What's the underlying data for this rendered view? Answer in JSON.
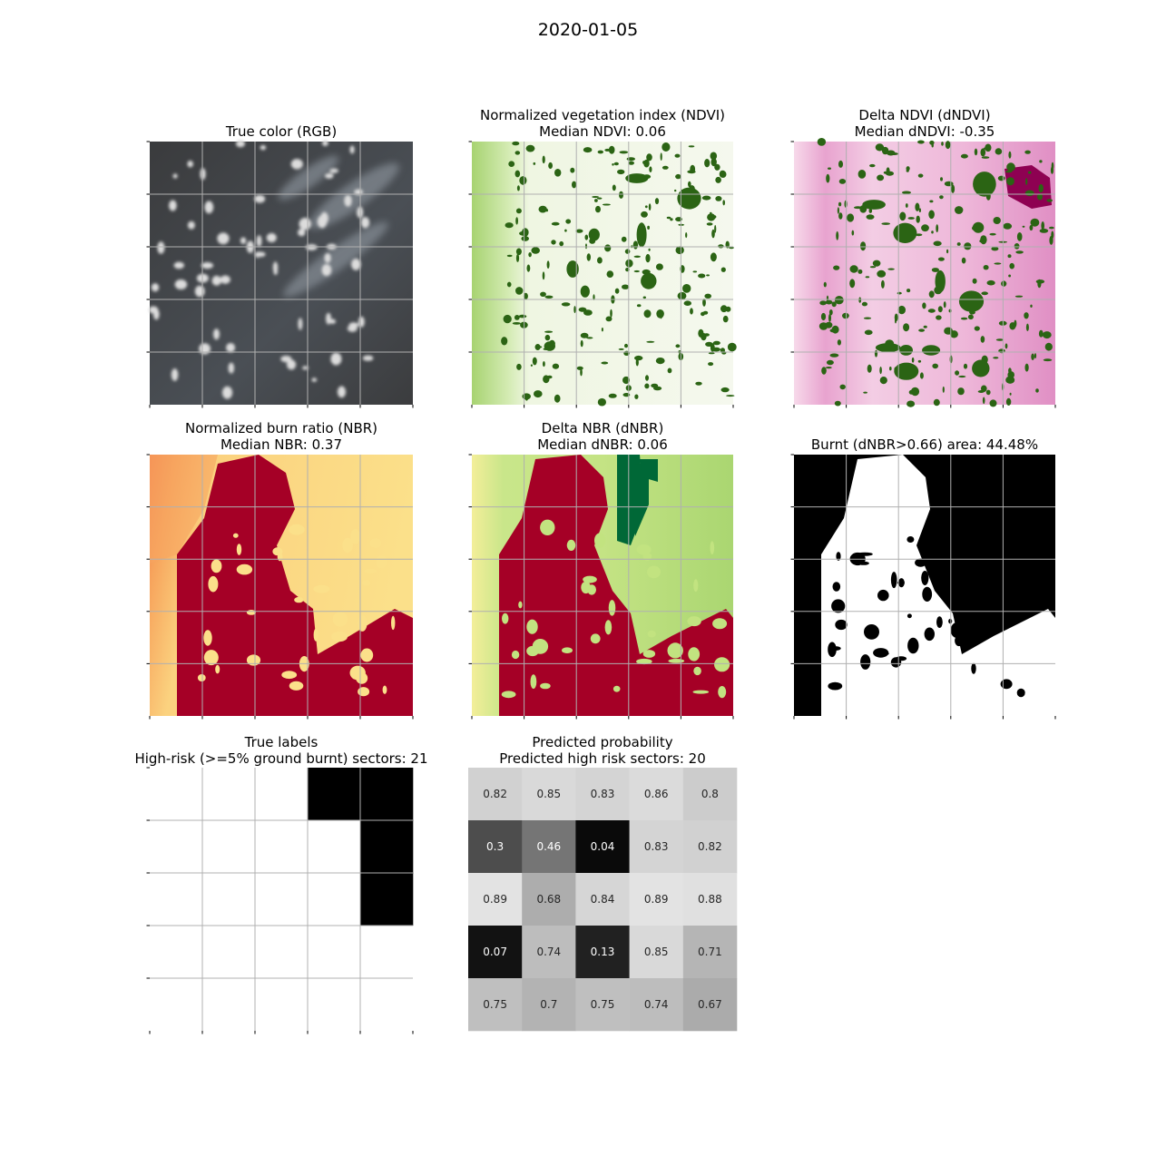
{
  "figure": {
    "suptitle": "2020-01-05",
    "panels": [
      {
        "id": "rgb",
        "title": "True color (RGB)",
        "subtitle": ""
      },
      {
        "id": "ndvi",
        "title": "Normalized vegetation index (NDVI)",
        "subtitle": "Median NDVI: 0.06"
      },
      {
        "id": "dndvi",
        "title": "Delta NDVI (dNDVI)",
        "subtitle": "Median dNDVI: -0.35"
      },
      {
        "id": "nbr",
        "title": "Normalized burn ratio (NBR)",
        "subtitle": "Median NBR: 0.37"
      },
      {
        "id": "dnbr",
        "title": "Delta NBR (dNBR)",
        "subtitle": "Median dNBR: 0.06"
      },
      {
        "id": "burnt",
        "title": "Burnt (dNBR>0.66) area: 44.48%",
        "subtitle": ""
      },
      {
        "id": "labels",
        "title": "True labels",
        "subtitle": "High-risk (>=5% ground burnt) sectors: 21"
      },
      {
        "id": "prob",
        "title": "Predicted probability",
        "subtitle": "Predicted high risk sectors: 20"
      }
    ]
  },
  "chart_data": [
    {
      "type": "heatmap",
      "name": "true-labels",
      "title": "True labels",
      "subtitle": "High-risk (>=5% ground burnt) sectors: 21",
      "rows": 5,
      "cols": 5,
      "values": [
        [
          1,
          1,
          1,
          0,
          0
        ],
        [
          1,
          1,
          1,
          1,
          0
        ],
        [
          1,
          1,
          1,
          1,
          0
        ],
        [
          1,
          1,
          1,
          1,
          1
        ],
        [
          1,
          1,
          1,
          1,
          1
        ]
      ],
      "colormap": {
        "0": "#000000",
        "1": "#ffffff"
      },
      "grid": true
    },
    {
      "type": "heatmap",
      "name": "predicted-probability",
      "title": "Predicted probability",
      "subtitle": "Predicted high risk sectors: 20",
      "rows": 5,
      "cols": 5,
      "values": [
        [
          0.82,
          0.85,
          0.83,
          0.86,
          0.8
        ],
        [
          0.3,
          0.46,
          0.04,
          0.83,
          0.82
        ],
        [
          0.89,
          0.68,
          0.84,
          0.89,
          0.88
        ],
        [
          0.07,
          0.74,
          0.13,
          0.85,
          0.71
        ],
        [
          0.75,
          0.7,
          0.75,
          0.74,
          0.67
        ]
      ],
      "colormap": "gray",
      "show_values": true,
      "grid": false
    }
  ],
  "colors": {
    "ndvi_dark": "#2b6414",
    "ndvi_light": "#f1f5e7",
    "ndvi_mid": "#a9d46e",
    "dndvi_pink": "#e8a3cf",
    "dndvi_magenta": "#8e0152",
    "nbr_red": "#a50026",
    "nbr_yellow": "#fbe08a",
    "nbr_orange": "#f47d4a",
    "dnbr_green": "#006837",
    "dnbr_lightgreen": "#b7df7c",
    "grid": "#b0b0b0"
  }
}
